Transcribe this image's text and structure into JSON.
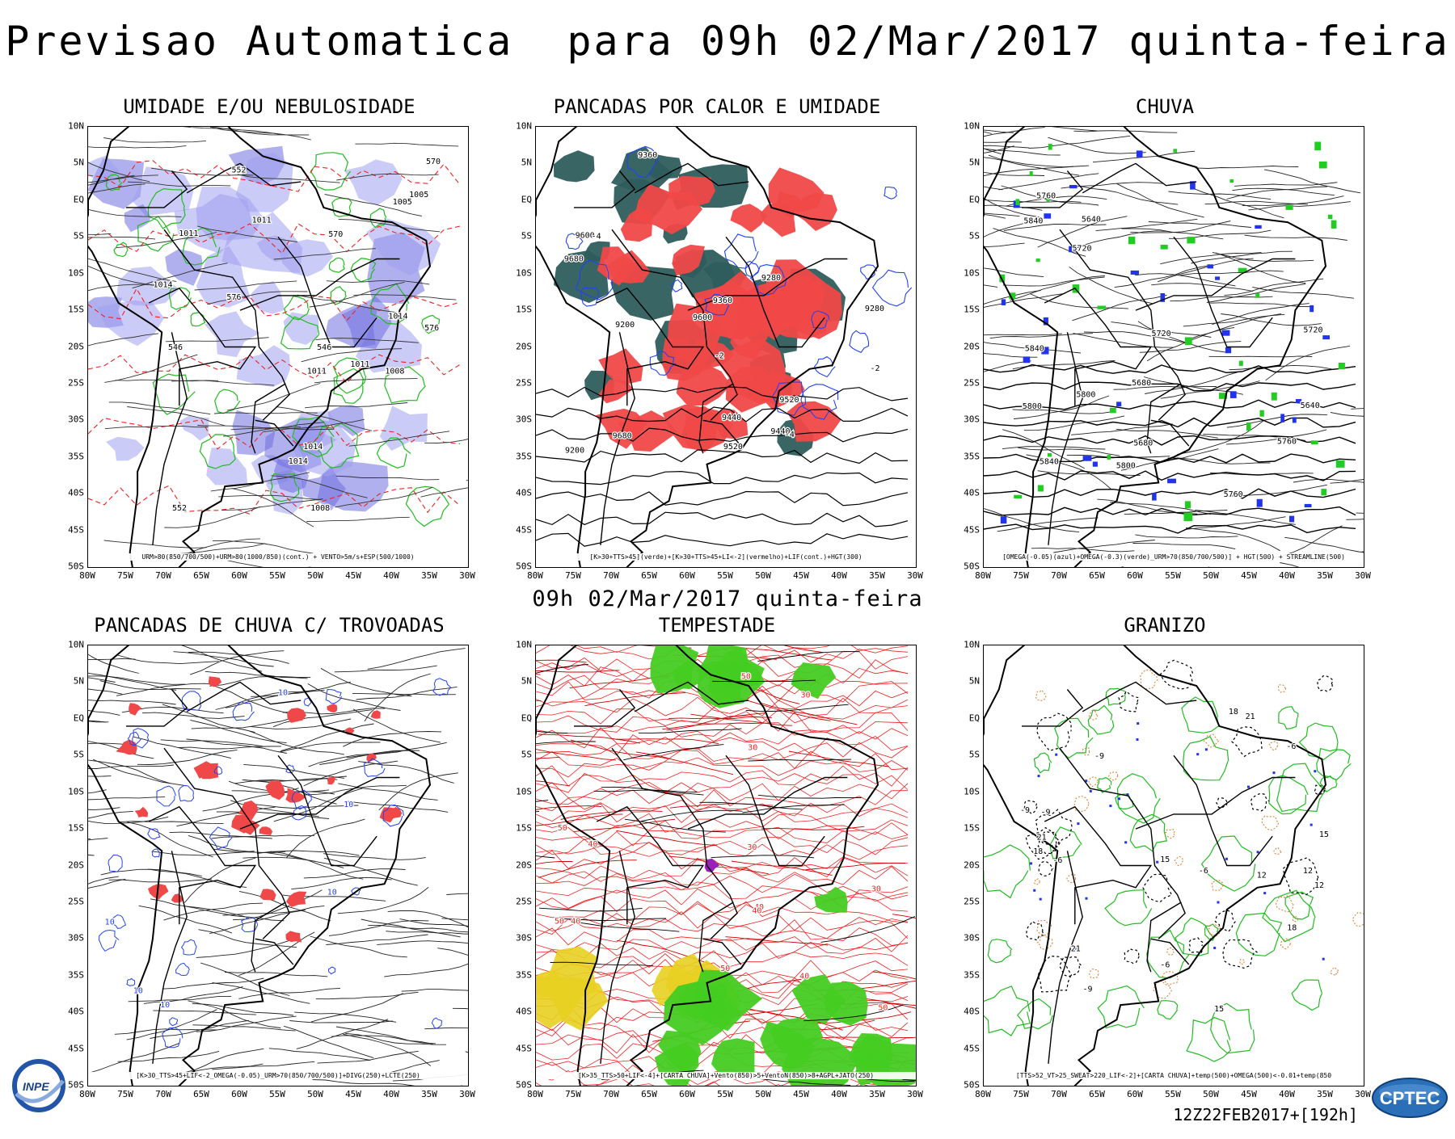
{
  "header": {
    "title": "Previsao Automatica  para 09h 02/Mar/2017 quinta-feira",
    "mid_title": "09h 02/Mar/2017 quinta-feira",
    "run_label": "12Z22FEB2017+[192h]"
  },
  "axes": {
    "lat_labels": [
      "10N",
      "5N",
      "EQ",
      "5S",
      "10S",
      "15S",
      "20S",
      "25S",
      "30S",
      "35S",
      "40S",
      "45S",
      "50S"
    ],
    "lon_labels": [
      "80W",
      "75W",
      "70W",
      "65W",
      "60W",
      "55W",
      "50W",
      "45W",
      "40W",
      "35W",
      "30W"
    ]
  },
  "panels": [
    {
      "id": "umidade",
      "title": "UMIDADE E/OU NEBULOSIDADE",
      "caption": "URM>80(850/700/500)+URM>80(1000/850)(cont.) + VENTO>5m/s+ESP(500/1000)",
      "labels": [
        "1014",
        "1011",
        "576",
        "1008",
        "1011",
        "1014",
        "570",
        "552",
        "546",
        "1005"
      ]
    },
    {
      "id": "pancadas-calor",
      "title": "PANCADAS POR CALOR E UMIDADE",
      "caption": "[K>30+TTS>45](verde)+[K>30+TTS>45+LI<-2](vermelho)+LIF(cont.)+HGT(300)",
      "labels": [
        "9680",
        "9600",
        "9520",
        "9440",
        "9360",
        "9280",
        "9200",
        "-2",
        "-4"
      ]
    },
    {
      "id": "chuva",
      "title": "CHUVA",
      "caption": "[OMEGA(-0.05)(azul)+OMEGA(-0.3)(verde)_URM>70(850/700/500)] + HGT(500) + STREAMLINE(500)",
      "labels": [
        "5840",
        "5800",
        "5760",
        "5720",
        "5680",
        "5640"
      ]
    },
    {
      "id": "pancadas-trovoadas",
      "title": "PANCADAS DE CHUVA C/ TROVOADAS",
      "caption": "[K>30_TTS>45+LIF<-2_OMEGA(-0.05)_URM>70(850/700/500)]+DIVG(250)+LCTE(250)",
      "labels": [
        "10"
      ]
    },
    {
      "id": "tempestade",
      "title": "TEMPESTADE",
      "caption": "[K>35_TTS>50+LIF<-4]+[CARTA CHUVA]+Vento(850)>5+VentoN(850)>8+AGPL+JATO(250)",
      "labels": [
        "50",
        "40",
        "30"
      ]
    },
    {
      "id": "granizo",
      "title": "GRANIZO",
      "caption": "[TTS>52_VT>25_SWEAT>220_LIF<-2]+[CARTA CHUVA]+temp(500)+OMEGA(500)<-0.01+temp(850",
      "labels": [
        "-6",
        "-9",
        "12",
        "15",
        "18",
        "21"
      ]
    }
  ],
  "logos": {
    "inpe": "INPE",
    "cptec": "CPTEC"
  },
  "colors": {
    "humidity_fill": "#a0a0f0",
    "humidity_fill_dark": "#7070e0",
    "contour_green": "#22bb22",
    "contour_red": "#ee2222",
    "contour_blue": "#2244ee",
    "convection_red": "#f04848",
    "convection_teal": "#2e5d5d",
    "omega_blue": "#2233ee",
    "omega_green": "#22cc22",
    "storm_green": "#44cc22",
    "storm_yellow": "#e8d020",
    "storm_purple": "#9922bb",
    "hail_orange": "#e07820"
  }
}
